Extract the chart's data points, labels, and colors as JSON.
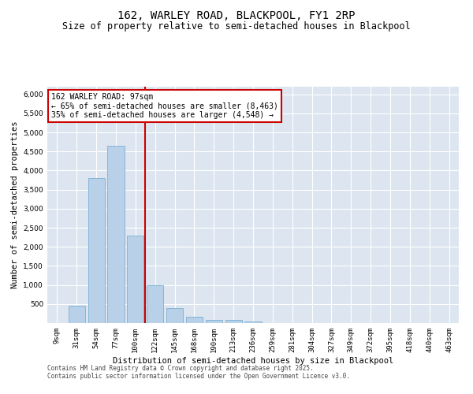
{
  "title1": "162, WARLEY ROAD, BLACKPOOL, FY1 2RP",
  "title2": "Size of property relative to semi-detached houses in Blackpool",
  "xlabel": "Distribution of semi-detached houses by size in Blackpool",
  "ylabel": "Number of semi-detached properties",
  "categories": [
    "9sqm",
    "31sqm",
    "54sqm",
    "77sqm",
    "100sqm",
    "122sqm",
    "145sqm",
    "168sqm",
    "190sqm",
    "213sqm",
    "236sqm",
    "259sqm",
    "281sqm",
    "304sqm",
    "327sqm",
    "349sqm",
    "372sqm",
    "395sqm",
    "418sqm",
    "440sqm",
    "463sqm"
  ],
  "values": [
    0,
    450,
    3800,
    4650,
    2300,
    1000,
    400,
    160,
    90,
    90,
    50,
    0,
    0,
    0,
    0,
    0,
    0,
    0,
    0,
    0,
    0
  ],
  "bar_color": "#b8d0e8",
  "bar_edge_color": "#7aafd4",
  "ylim": [
    0,
    6200
  ],
  "yticks": [
    0,
    500,
    1000,
    1500,
    2000,
    2500,
    3000,
    3500,
    4000,
    4500,
    5000,
    5500,
    6000
  ],
  "vline_x": 4.5,
  "vline_color": "#cc0000",
  "annotation_title": "162 WARLEY ROAD: 97sqm",
  "annotation_line1": "← 65% of semi-detached houses are smaller (8,463)",
  "annotation_line2": "35% of semi-detached houses are larger (4,548) →",
  "annotation_box_color": "#cc0000",
  "background_color": "#dde6f0",
  "footnote1": "Contains HM Land Registry data © Crown copyright and database right 2025.",
  "footnote2": "Contains public sector information licensed under the Open Government Licence v3.0.",
  "title1_fontsize": 10,
  "title2_fontsize": 8.5,
  "axis_fontsize": 7.5,
  "tick_fontsize": 6.5,
  "annot_fontsize": 7.0,
  "footnote_fontsize": 5.5
}
